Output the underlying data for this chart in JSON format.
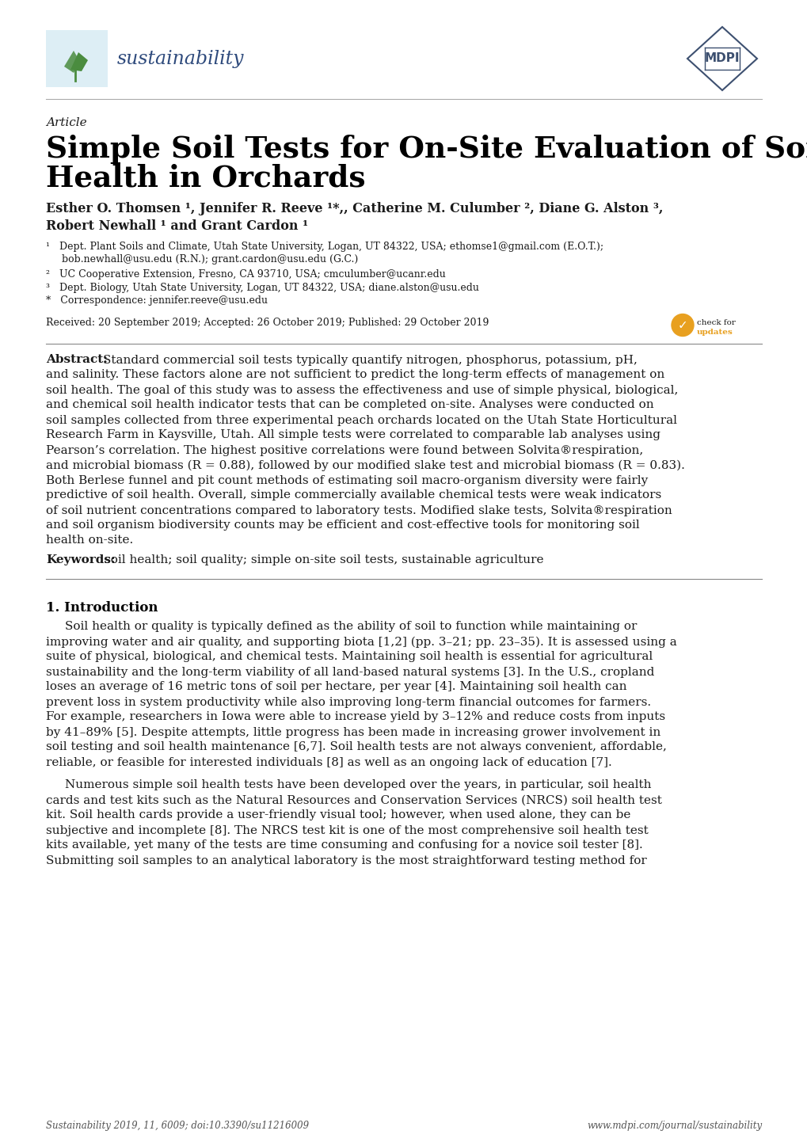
{
  "title_article": "Article",
  "title_main_line1": "Simple Soil Tests for On-Site Evaluation of Soil",
  "title_main_line2": "Health in Orchards",
  "author_line1": "Esther O. Thomsen ¹, Jennifer R. Reeve ¹*,, Catherine M. Culumber ², Diane G. Alston ³,",
  "author_line2": "Robert Newhall ¹ and Grant Cardon ¹",
  "aff1a": "¹   Dept. Plant Soils and Climate, Utah State University, Logan, UT 84322, USA; ethomse1@gmail.com (E.O.T.);",
  "aff1b": "     bob.newhall@usu.edu (R.N.); grant.cardon@usu.edu (G.C.)",
  "aff2": "²   UC Cooperative Extension, Fresno, CA 93710, USA; cmculumber@ucanr.edu",
  "aff3": "³   Dept. Biology, Utah State University, Logan, UT 84322, USA; diane.alston@usu.edu",
  "aff4": "*   Correspondence: jennifer.reeve@usu.edu",
  "received": "Received: 20 September 2019; Accepted: 26 October 2019; Published: 29 October 2019",
  "abstract_lines": [
    "Standard commercial soil tests typically quantify nitrogen, phosphorus, potassium, pH,",
    "and salinity. These factors alone are not sufficient to predict the long-term effects of management on",
    "soil health. The goal of this study was to assess the effectiveness and use of simple physical, biological,",
    "and chemical soil health indicator tests that can be completed on-site. Analyses were conducted on",
    "soil samples collected from three experimental peach orchards located on the Utah State Horticultural",
    "Research Farm in Kaysville, Utah. All simple tests were correlated to comparable lab analyses using",
    "Pearson’s correlation. The highest positive correlations were found between Solvita®respiration,",
    "and microbial biomass (R = 0.88), followed by our modified slake test and microbial biomass (R = 0.83).",
    "Both Berlese funnel and pit count methods of estimating soil macro-organism diversity were fairly",
    "predictive of soil health. Overall, simple commercially available chemical tests were weak indicators",
    "of soil nutrient concentrations compared to laboratory tests. Modified slake tests, Solvita®respiration",
    "and soil organism biodiversity counts may be efficient and cost-effective tools for monitoring soil",
    "health on-site."
  ],
  "keywords_text": "soil health; soil quality; simple on-site soil tests, sustainable agriculture",
  "section1_title": "1. Introduction",
  "para1_lines": [
    "Soil health or quality is typically defined as the ability of soil to function while maintaining or",
    "improving water and air quality, and supporting biota [1,2] (pp. 3–21; pp. 23–35). It is assessed using a",
    "suite of physical, biological, and chemical tests. Maintaining soil health is essential for agricultural",
    "sustainability and the long-term viability of all land-based natural systems [3]. In the U.S., cropland",
    "loses an average of 16 metric tons of soil per hectare, per year [4]. Maintaining soil health can",
    "prevent loss in system productivity while also improving long-term financial outcomes for farmers.",
    "For example, researchers in Iowa were able to increase yield by 3–12% and reduce costs from inputs",
    "by 41–89% [5]. Despite attempts, little progress has been made in increasing grower involvement in",
    "soil testing and soil health maintenance [6,7]. Soil health tests are not always convenient, affordable,",
    "reliable, or feasible for interested individuals [8] as well as an ongoing lack of education [7]."
  ],
  "para2_lines": [
    "Numerous simple soil health tests have been developed over the years, in particular, soil health",
    "cards and test kits such as the Natural Resources and Conservation Services (NRCS) soil health test",
    "kit. Soil health cards provide a user-friendly visual tool; however, when used alone, they can be",
    "subjective and incomplete [8]. The NRCS test kit is one of the most comprehensive soil health test",
    "kits available, yet many of the tests are time consuming and confusing for a novice soil tester [8].",
    "Submitting soil samples to an analytical laboratory is the most straightforward testing method for"
  ],
  "footer_left": "Sustainability 2019, 11, 6009; doi:10.3390/su11216009",
  "footer_right": "www.mdpi.com/journal/sustainability",
  "sustainability_text": "sustainability",
  "bg_color": "#ffffff",
  "text_color": "#1a1a1a",
  "title_color": "#000000",
  "section_title_color": "#000000",
  "footer_color": "#555555",
  "journal_name_color": "#2e4a7c",
  "logo_bg_color": "#ddeef5",
  "mdpi_color": "#3d5070",
  "leaf_color": "#4a8c3f",
  "line_color": "#aaaaaa"
}
